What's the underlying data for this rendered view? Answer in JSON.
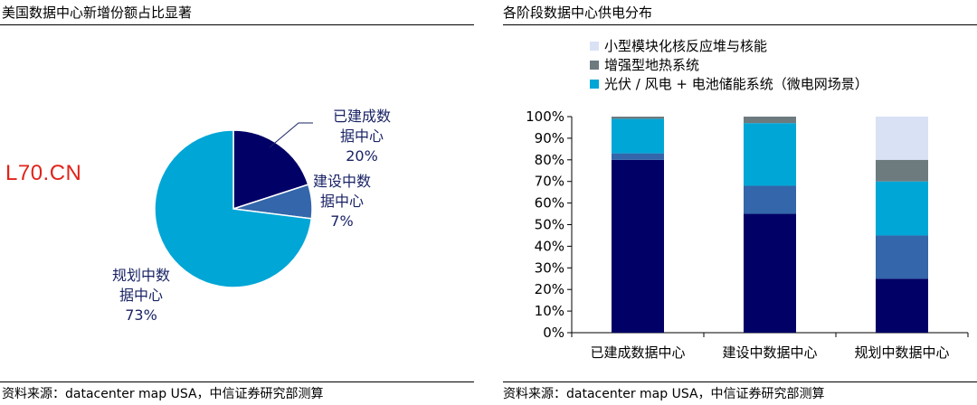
{
  "left_panel": {
    "title": "美国数据中心新增份额占比显著",
    "source": "资料来源：datacenter map USA，中信证券研究部测算",
    "watermark": "L70.CN"
  },
  "right_panel": {
    "title": "各阶段数据中心供电分布",
    "source": "资料来源：datacenter map USA，中信证券研究部测算"
  },
  "colors": {
    "navy": "#000066",
    "mid_blue": "#3366AA",
    "cyan": "#00A6D6",
    "gray": "#6D7B7F",
    "light_lavender": "#D9E1F5",
    "pie_label": "#1A2366"
  },
  "chart_data": [
    {
      "type": "pie",
      "title": "美国数据中心新增份额占比显著",
      "slices": [
        {
          "label_lines": [
            "已建成数",
            "据中心"
          ],
          "value": 20,
          "value_label": "20%",
          "color": "#000066"
        },
        {
          "label_lines": [
            "建设中数",
            "据中心"
          ],
          "value": 7,
          "value_label": "7%",
          "color": "#3366AA"
        },
        {
          "label_lines": [
            "规划中数",
            "据中心"
          ],
          "value": 73,
          "value_label": "73%",
          "color": "#00A6D6"
        }
      ]
    },
    {
      "type": "bar",
      "stacked": true,
      "title": "各阶段数据中心供电分布",
      "categories": [
        "已建成数据中心",
        "建设中数据中心",
        "规划中数据中心"
      ],
      "ylim": [
        0,
        100
      ],
      "yticks": [
        0,
        10,
        20,
        30,
        40,
        50,
        60,
        70,
        80,
        90,
        100
      ],
      "ytick_labels": [
        "0%",
        "10%",
        "20%",
        "30%",
        "40%",
        "50%",
        "60%",
        "70%",
        "80%",
        "90%",
        "100%"
      ],
      "legend_position": "top",
      "series": [
        {
          "name": "",
          "values": [
            80,
            55,
            25
          ],
          "color": "#000066"
        },
        {
          "name": "",
          "values": [
            3,
            13,
            20
          ],
          "color": "#3366AA"
        },
        {
          "name": "光伏 / 风电 + 电池储能系统（微电网场景）",
          "values": [
            16,
            29,
            25
          ],
          "color": "#00A6D6"
        },
        {
          "name": "增强型地热系统",
          "values": [
            1,
            3,
            10
          ],
          "color": "#6D7B7F"
        },
        {
          "name": "小型模块化核反应堆与核能",
          "values": [
            0,
            0,
            20
          ],
          "color": "#D9E1F5"
        }
      ],
      "legend_order": [
        4,
        3,
        2
      ]
    }
  ]
}
